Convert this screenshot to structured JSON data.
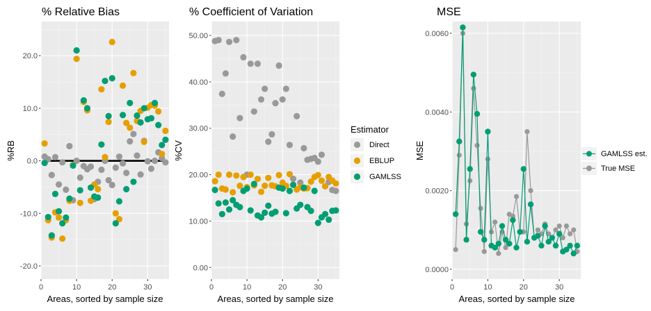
{
  "colors": {
    "direct": "#999999",
    "eblup": "#E69F00",
    "gamlss": "#009E73",
    "panel_bg": "#EBEBEB",
    "grid_major": "#FFFFFF",
    "reference_line": "#000000"
  },
  "chart_data": [
    {
      "type": "scatter",
      "title": "% Relative Bias",
      "xlabel": "Areas, sorted by sample size",
      "ylabel": "%RB",
      "xlim": [
        0,
        36
      ],
      "ylim": [
        -22.5,
        26.5
      ],
      "x_ticks": [
        0,
        10,
        20,
        30
      ],
      "x_tick_labels": [
        "0",
        "10",
        "20",
        "30"
      ],
      "y_ticks": [
        -20,
        -10,
        0,
        10,
        20
      ],
      "y_tick_labels": [
        "-20.0",
        "-10.0",
        "0.0",
        "10.0",
        "20.0"
      ],
      "reference_line_y": 0,
      "legend": "none",
      "series": [
        {
          "name": "Direct",
          "color_key": "direct",
          "x": [
            1,
            2,
            3,
            4,
            5,
            6,
            7,
            8,
            9,
            10,
            11,
            12,
            13,
            14,
            15,
            16,
            17,
            18,
            19,
            20,
            21,
            22,
            23,
            24,
            25,
            26,
            27,
            28,
            29,
            30,
            31,
            32,
            33,
            34,
            35
          ],
          "y": [
            0.8,
            0.3,
            -2.7,
            0.7,
            -4.5,
            -0.3,
            -5.5,
            2.8,
            -7.5,
            0.0,
            -3.2,
            -1.0,
            -1.6,
            -1.1,
            -7.3,
            -4.0,
            -1.7,
            0.0,
            -3.7,
            -4.6,
            -1.3,
            0.8,
            -0.5,
            -2.3,
            3.7,
            5.1,
            1.0,
            -2.6,
            3.8,
            -0.1,
            -1.5,
            0.0,
            1.6,
            0.5,
            -0.3
          ]
        },
        {
          "name": "EBLUP",
          "color_key": "eblup",
          "x": [
            1,
            2,
            3,
            4,
            5,
            6,
            7,
            8,
            9,
            10,
            11,
            12,
            13,
            14,
            15,
            16,
            17,
            18,
            19,
            20,
            21,
            22,
            23,
            24,
            25,
            26,
            27,
            28,
            29,
            30,
            31,
            32,
            33,
            34,
            35
          ],
          "y": [
            3.3,
            -11.3,
            -14.6,
            -9.8,
            -10.8,
            -14.8,
            -11.3,
            -7.6,
            -0.8,
            19.4,
            -8.0,
            11.2,
            9.6,
            -7.6,
            -4.5,
            -5.4,
            13.6,
            0.7,
            7.4,
            22.6,
            -10.0,
            -11.1,
            14.3,
            7.2,
            6.3,
            16.7,
            7.6,
            9.5,
            3.6,
            10.1,
            10.6,
            10.5,
            9.4,
            1.3,
            5.7
          ]
        },
        {
          "name": "GAMLSS",
          "color_key": "gamlss",
          "x": [
            1,
            2,
            3,
            4,
            5,
            6,
            7,
            8,
            9,
            10,
            11,
            12,
            13,
            14,
            15,
            16,
            17,
            18,
            19,
            20,
            21,
            22,
            23,
            24,
            25,
            26,
            27,
            28,
            29,
            30,
            31,
            32,
            33,
            34,
            35
          ],
          "y": [
            -0.4,
            -10.7,
            -14.2,
            -6.3,
            -9.6,
            -11.9,
            -10.8,
            -7.2,
            -0.9,
            21.0,
            -5.6,
            11.5,
            10.0,
            -5.1,
            -6.8,
            -7.0,
            3.1,
            15.2,
            8.5,
            15.7,
            -11.9,
            -7.7,
            8.7,
            -5.4,
            11.0,
            -4.0,
            8.6,
            7.3,
            10.0,
            7.9,
            8.1,
            11.0,
            6.8,
            3.0,
            4.0
          ]
        }
      ]
    },
    {
      "type": "scatter",
      "title": "% Coefficient of Variation",
      "xlabel": "Areas, sorted by sample size",
      "ylabel": "%CV",
      "xlim": [
        0,
        36
      ],
      "ylim": [
        -2.5,
        53.0
      ],
      "x_ticks": [
        0,
        10,
        20,
        30
      ],
      "x_tick_labels": [
        "0",
        "10",
        "20",
        "30"
      ],
      "y_ticks": [
        0,
        10,
        20,
        30,
        40,
        50
      ],
      "y_tick_labels": [
        "0.00",
        "10.00",
        "20.00",
        "30.00",
        "40.00",
        "50.00"
      ],
      "legend": "right",
      "legend_title": "Estimator",
      "series": [
        {
          "name": "Direct",
          "color_key": "direct",
          "x": [
            1,
            2,
            3,
            4,
            5,
            6,
            7,
            8,
            9,
            10,
            11,
            12,
            13,
            14,
            15,
            16,
            17,
            18,
            19,
            20,
            21,
            22,
            23,
            24,
            25,
            26,
            27,
            28,
            29,
            30,
            31,
            32,
            33,
            34,
            35
          ],
          "y": [
            48.8,
            49.0,
            37.4,
            41.8,
            48.6,
            28.2,
            49.0,
            32.2,
            45.3,
            20.0,
            43.9,
            33.6,
            43.9,
            36.2,
            38.5,
            27.1,
            28.7,
            35.4,
            43.5,
            36.2,
            38.5,
            26.4,
            19.1,
            32.6,
            18.3,
            25.7,
            23.2,
            23.4,
            23.6,
            22.8,
            24.3,
            17.5,
            18.4,
            16.7,
            16.5
          ]
        },
        {
          "name": "EBLUP",
          "color_key": "eblup",
          "x": [
            1,
            2,
            3,
            4,
            5,
            6,
            7,
            8,
            9,
            10,
            11,
            12,
            13,
            14,
            15,
            16,
            17,
            18,
            19,
            20,
            21,
            22,
            23,
            24,
            25,
            26,
            27,
            28,
            29,
            30,
            31,
            32,
            33,
            34,
            35
          ],
          "y": [
            18.6,
            20.0,
            17.0,
            16.8,
            20.0,
            16.2,
            19.8,
            17.6,
            19.5,
            17.3,
            20.0,
            17.7,
            19.1,
            16.3,
            17.6,
            19.3,
            17.7,
            17.5,
            19.9,
            18.3,
            17.6,
            20.1,
            17.8,
            16.8,
            17.3,
            17.0,
            17.1,
            18.5,
            19.5,
            19.9,
            18.7,
            17.5,
            19.5,
            18.7,
            18.1
          ]
        },
        {
          "name": "GAMLSS",
          "color_key": "gamlss",
          "x": [
            1,
            2,
            3,
            4,
            5,
            6,
            7,
            8,
            9,
            10,
            11,
            12,
            13,
            14,
            15,
            16,
            17,
            18,
            19,
            20,
            21,
            22,
            23,
            24,
            25,
            26,
            27,
            28,
            29,
            30,
            31,
            32,
            33,
            34,
            35
          ],
          "y": [
            16.7,
            13.8,
            11.5,
            14.0,
            12.5,
            14.5,
            13.5,
            13.0,
            16.5,
            17.0,
            12.3,
            18.0,
            11.2,
            10.8,
            11.8,
            13.3,
            11.6,
            12.0,
            17.2,
            17.0,
            11.7,
            16.5,
            17.8,
            12.7,
            13.5,
            17.2,
            13.0,
            12.2,
            16.5,
            9.6,
            10.8,
            11.5,
            10.3,
            12.2,
            12.3
          ]
        }
      ]
    },
    {
      "type": "line",
      "title": "MSE",
      "xlabel": "Areas, sorted by sample size",
      "ylabel": "MSE",
      "xlim": [
        0,
        36
      ],
      "ylim": [
        -0.00025,
        0.0063
      ],
      "x_ticks": [
        0,
        10,
        20,
        30
      ],
      "x_tick_labels": [
        "0",
        "10",
        "20",
        "30"
      ],
      "y_ticks": [
        0.0,
        0.002,
        0.004,
        0.006
      ],
      "y_tick_labels": [
        "0.0000",
        "0.0020",
        "0.0040",
        "0.0060"
      ],
      "legend": "right",
      "series": [
        {
          "name": "GAMLSS est.",
          "color_key": "gamlss",
          "x": [
            1,
            2,
            3,
            4,
            5,
            6,
            7,
            8,
            9,
            10,
            11,
            12,
            13,
            14,
            15,
            16,
            17,
            18,
            19,
            20,
            21,
            22,
            23,
            24,
            25,
            26,
            27,
            28,
            29,
            30,
            31,
            32,
            33,
            34,
            35
          ],
          "y": [
            0.0014,
            0.00325,
            0.00615,
            0.00075,
            0.00255,
            0.00495,
            0.00395,
            0.00095,
            0.00075,
            0.0035,
            0.0006,
            0.00055,
            0.00065,
            0.0011,
            0.00075,
            0.00065,
            0.00125,
            0.00055,
            0.00095,
            0.00255,
            0.0007,
            0.00165,
            0.0008,
            0.00085,
            0.0006,
            0.0011,
            0.0007,
            0.0008,
            0.0006,
            0.0009,
            0.00045,
            0.0005,
            0.0006,
            0.0004,
            0.0006
          ]
        },
        {
          "name": "True MSE",
          "color_key": "direct",
          "x": [
            1,
            2,
            3,
            4,
            5,
            6,
            7,
            8,
            9,
            10,
            11,
            12,
            13,
            14,
            15,
            16,
            17,
            18,
            19,
            20,
            21,
            22,
            23,
            24,
            25,
            26,
            27,
            28,
            29,
            30,
            31,
            32,
            33,
            34,
            35
          ],
          "y": [
            0.0005,
            0.0029,
            0.006,
            0.00115,
            0.00225,
            0.0046,
            0.00315,
            0.00155,
            0.00045,
            0.0028,
            0.00095,
            0.0012,
            0.0004,
            0.00095,
            0.00055,
            0.0014,
            0.00135,
            0.00185,
            0.00095,
            0.00095,
            0.0035,
            0.002,
            0.0008,
            0.001,
            0.0009,
            0.00115,
            0.0009,
            0.0008,
            0.001,
            0.0011,
            0.0008,
            0.0011,
            0.0009,
            0.001,
            0.00045
          ]
        }
      ]
    }
  ]
}
